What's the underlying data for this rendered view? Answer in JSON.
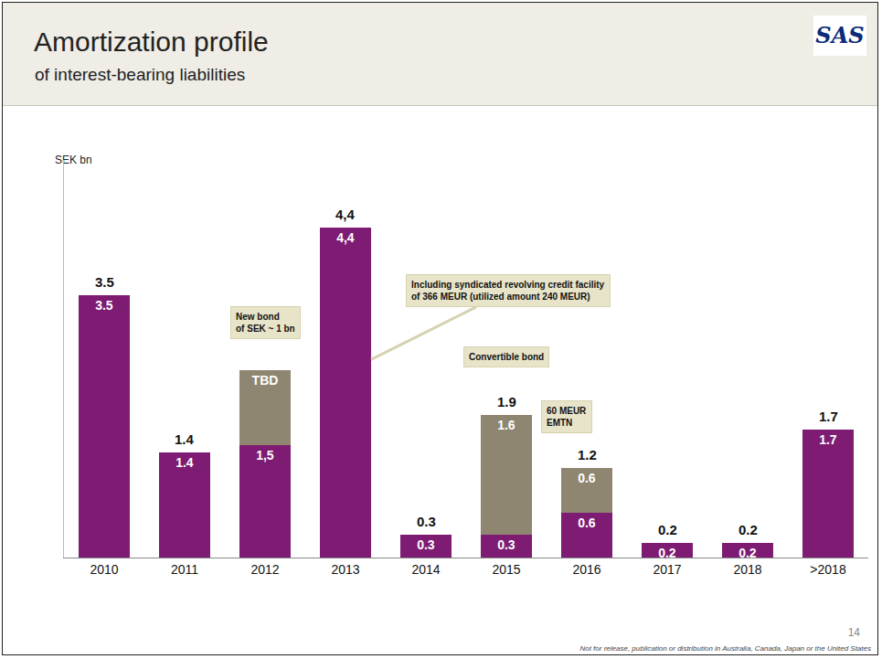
{
  "header": {
    "title": "Amortization profile",
    "subtitle": "of interest-bearing liabilities",
    "logo": "SAS"
  },
  "chart_data": {
    "type": "bar",
    "stacked": true,
    "data_labels": true,
    "tick_labels": "x",
    "ylabel": "SEK bn",
    "categories": [
      "2010",
      "2011",
      "2012",
      "2013",
      "2014",
      "2015",
      "2016",
      "2017",
      "2018",
      ">2018"
    ],
    "series": [
      {
        "color": "#7D1C72",
        "values": [
          3.5,
          1.4,
          1.5,
          4.4,
          0.3,
          0.3,
          0.6,
          0.2,
          0.2,
          1.7
        ],
        "value_labels": [
          "3.5",
          "1.4",
          "1,5",
          "4,4",
          "0.3",
          "0.3",
          "0.6",
          "0.2",
          "0.2",
          "1.7"
        ]
      },
      {
        "color": "#8E8670",
        "values": [
          null,
          null,
          1.0,
          null,
          null,
          1.6,
          0.6,
          null,
          null,
          null
        ],
        "value_labels": [
          null,
          null,
          "TBD",
          null,
          null,
          "1.6",
          "0.6",
          null,
          null,
          null
        ]
      }
    ],
    "totals": [
      3.5,
      1.4,
      null,
      4.4,
      0.3,
      1.9,
      1.2,
      0.2,
      0.2,
      1.7
    ],
    "total_labels": [
      "3.5",
      "1.4",
      null,
      "4,4",
      "0.3",
      "1.9",
      "1.2",
      "0.2",
      "0.2",
      "1.7"
    ],
    "ylim": [
      0,
      5.3
    ],
    "annotations": [
      {
        "category": "2012",
        "text": "New bond\nof SEK ~ 1 bn"
      },
      {
        "category": "2013",
        "text": "Including syndicated revolving credit facility\nof 366 MEUR (utilized amount 240 MEUR)"
      },
      {
        "category": "2015",
        "text": "Convertible bond"
      },
      {
        "category": "2016",
        "text": "60 MEUR\nEMTN"
      }
    ]
  },
  "footer": {
    "page": "14",
    "note": "Not for release, publication or distribution in Australia, Canada, Japan or the United States"
  }
}
